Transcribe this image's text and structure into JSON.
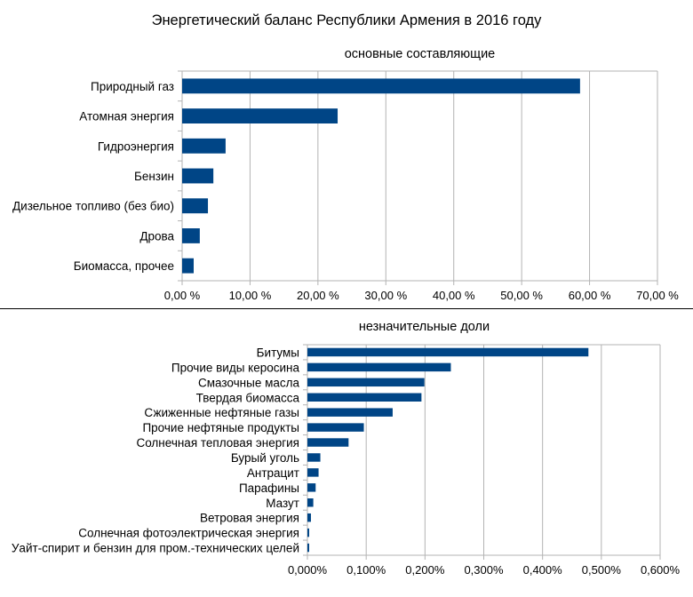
{
  "title": "Энергетический баланс Республики Армения в 2016 году",
  "chart_data": [
    {
      "type": "bar",
      "orientation": "horizontal",
      "subtitle": "основные составляющие",
      "categories": [
        "Природный газ",
        "Атомная энергия",
        "Гидроэнергия",
        "Бензин",
        "Дизельное топливо (без био)",
        "Дрова",
        "Биомасса, прочее"
      ],
      "values": [
        58.6,
        22.9,
        6.4,
        4.6,
        3.8,
        2.6,
        1.7
      ],
      "xlim": [
        0,
        70
      ],
      "ticks": [
        "0,00 %",
        "10,00 %",
        "20,00 %",
        "30,00 %",
        "40,00 %",
        "50,00 %",
        "60,00 %",
        "70,00 %"
      ],
      "xlabel": "",
      "ylabel": "",
      "grid": true,
      "bar_color": "#004586"
    },
    {
      "type": "bar",
      "orientation": "horizontal",
      "subtitle": "незначительные доли",
      "categories": [
        "Битумы",
        "Прочие виды керосина",
        "Смазочные масла",
        "Твердая биомасса",
        "Сжиженные нефтяные газы",
        "Прочие нефтяные продукты",
        "Солнечная тепловая энергия",
        "Бурый уголь",
        "Антрацит",
        "Парафины",
        "Мазут",
        "Ветровая энергия",
        "Солнечная фотоэлектрическая энергия",
        "Уайт-спирит и бензин для пром.-технических целей"
      ],
      "values": [
        0.478,
        0.244,
        0.199,
        0.194,
        0.145,
        0.096,
        0.07,
        0.022,
        0.019,
        0.014,
        0.01,
        0.006,
        0.003,
        0.003
      ],
      "xlim": [
        0,
        0.6
      ],
      "ticks": [
        "0,000%",
        "0,100%",
        "0,200%",
        "0,300%",
        "0,400%",
        "0,500%",
        "0,600%"
      ],
      "xlabel": "",
      "ylabel": "",
      "grid": true,
      "bar_color": "#004586"
    }
  ]
}
